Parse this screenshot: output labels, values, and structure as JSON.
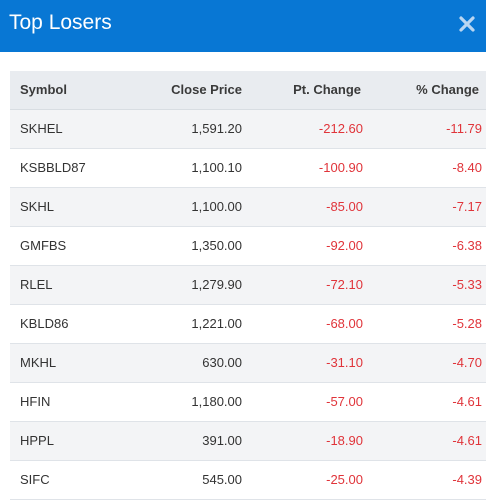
{
  "modal": {
    "title": "Top Losers",
    "close_icon": "close-icon"
  },
  "colors": {
    "header_bg": "#0877d4",
    "negative": "#e0343a",
    "row_stripe": "#f3f4f6",
    "table_header_bg": "#e9ecf0"
  },
  "table": {
    "headers": {
      "symbol": "Symbol",
      "close_price": "Close Price",
      "pt_change": "Pt. Change",
      "pct_change": "% Change"
    },
    "rows": [
      {
        "symbol": "SKHEL",
        "close_price": "1,591.20",
        "pt_change": "-212.60",
        "pct_change": "-11.79"
      },
      {
        "symbol": "KSBBLD87",
        "close_price": "1,100.10",
        "pt_change": "-100.90",
        "pct_change": "-8.40"
      },
      {
        "symbol": "SKHL",
        "close_price": "1,100.00",
        "pt_change": "-85.00",
        "pct_change": "-7.17"
      },
      {
        "symbol": "GMFBS",
        "close_price": "1,350.00",
        "pt_change": "-92.00",
        "pct_change": "-6.38"
      },
      {
        "symbol": "RLEL",
        "close_price": "1,279.90",
        "pt_change": "-72.10",
        "pct_change": "-5.33"
      },
      {
        "symbol": "KBLD86",
        "close_price": "1,221.00",
        "pt_change": "-68.00",
        "pct_change": "-5.28"
      },
      {
        "symbol": "MKHL",
        "close_price": "630.00",
        "pt_change": "-31.10",
        "pct_change": "-4.70"
      },
      {
        "symbol": "HFIN",
        "close_price": "1,180.00",
        "pt_change": "-57.00",
        "pct_change": "-4.61"
      },
      {
        "symbol": "HPPL",
        "close_price": "391.00",
        "pt_change": "-18.90",
        "pct_change": "-4.61"
      },
      {
        "symbol": "SIFC",
        "close_price": "545.00",
        "pt_change": "-25.00",
        "pct_change": "-4.39"
      }
    ]
  }
}
